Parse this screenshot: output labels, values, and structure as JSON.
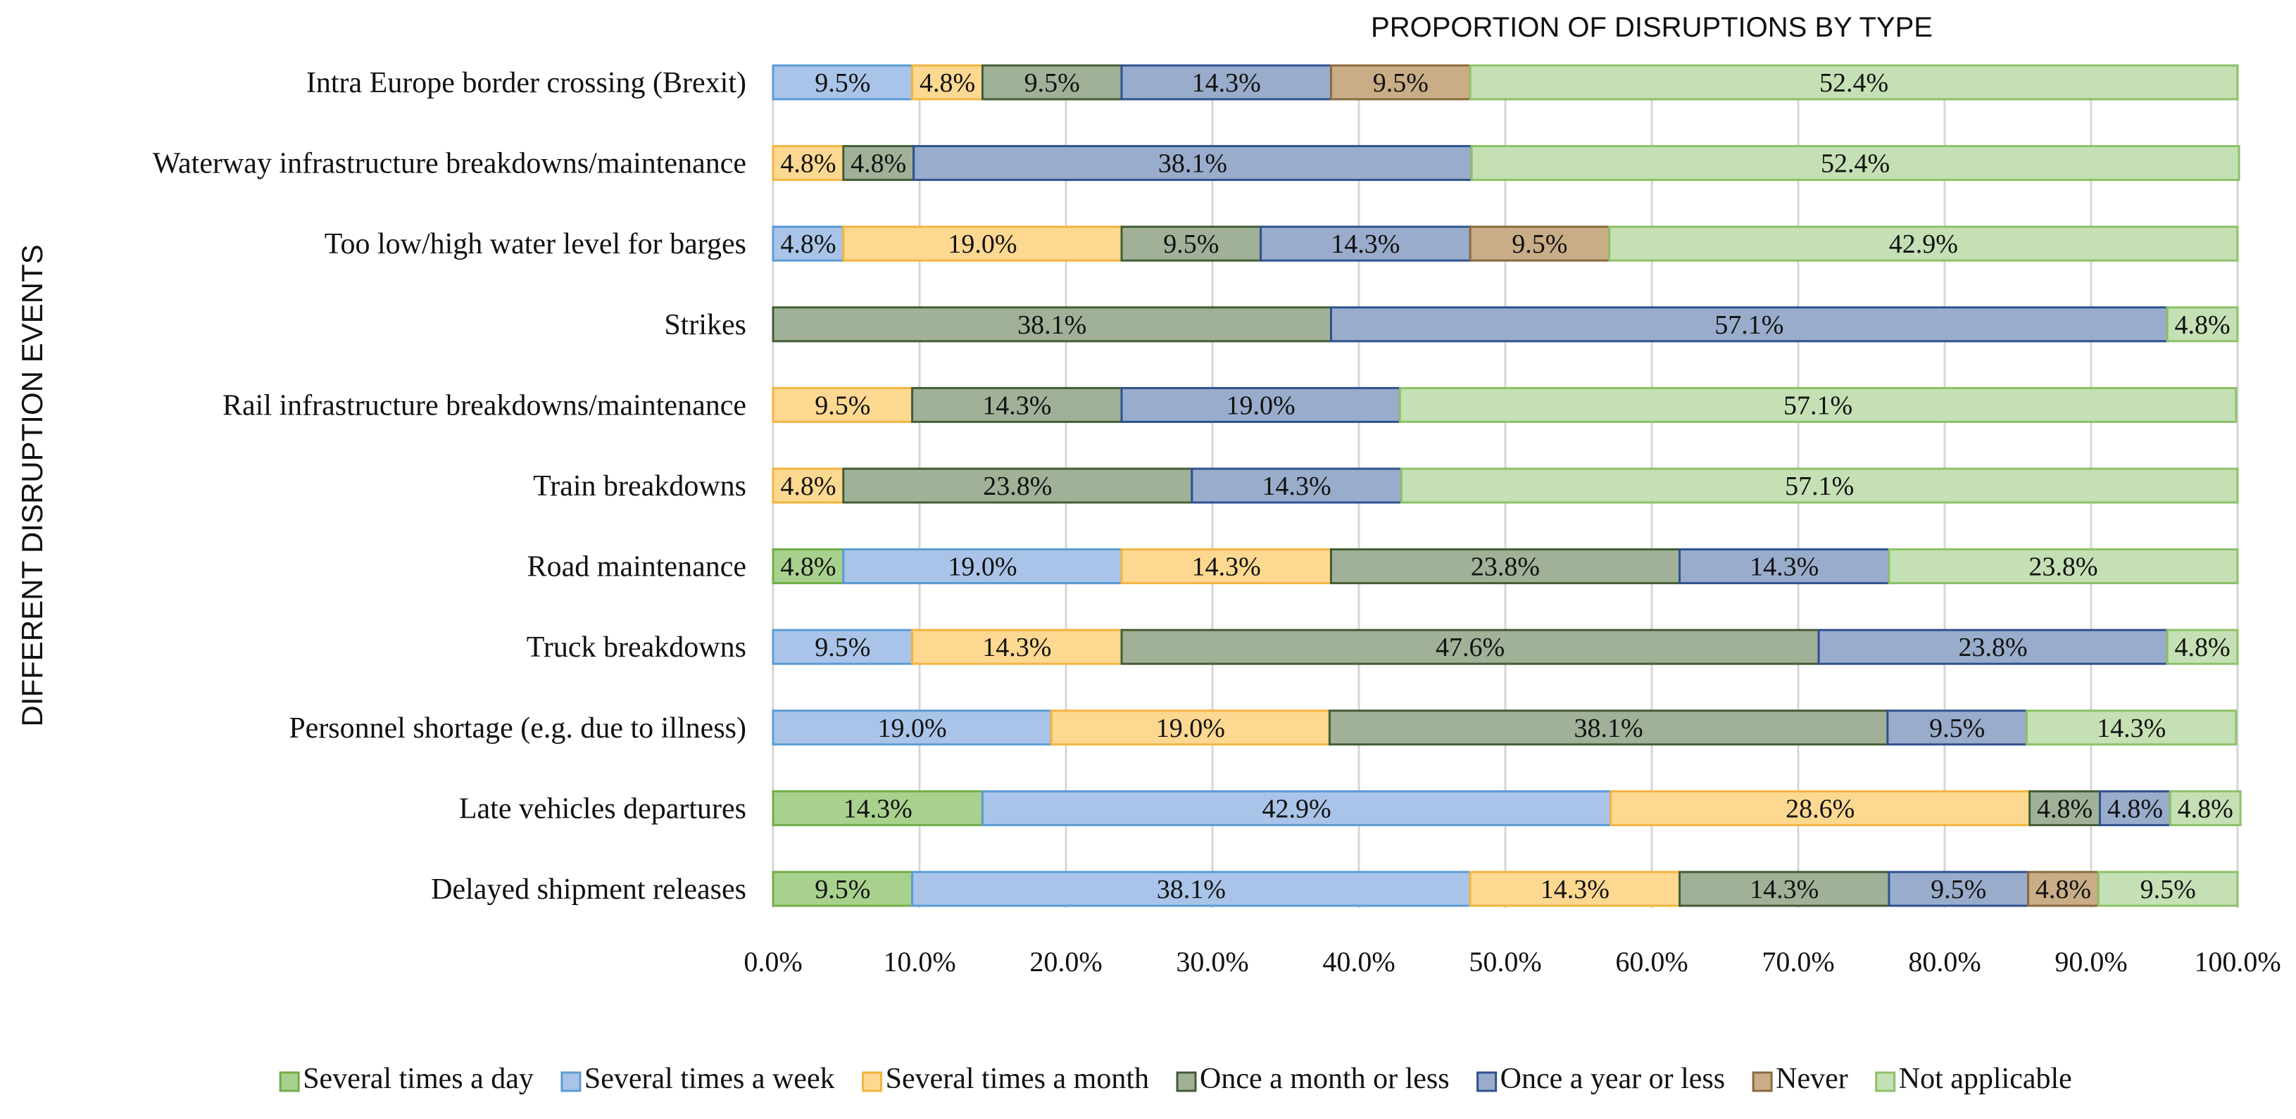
{
  "chart_data": {
    "type": "bar",
    "orientation": "horizontal",
    "stacked": true,
    "title": "PROPORTION OF DISRUPTIONS BY TYPE",
    "xlabel": "",
    "ylabel": "DIFFERENT DISRUPTION EVENTS",
    "xlim": [
      0,
      100
    ],
    "xticks": [
      "0.0%",
      "10.0%",
      "20.0%",
      "30.0%",
      "40.0%",
      "50.0%",
      "60.0%",
      "70.0%",
      "80.0%",
      "90.0%",
      "100.0%"
    ],
    "grid": true,
    "legend_position": "bottom",
    "categories": [
      "Intra Europe border crossing (Brexit)",
      "Waterway infrastructure breakdowns/maintenance",
      "Too low/high water level for barges",
      "Strikes",
      "Rail infrastructure breakdowns/maintenance",
      "Train breakdowns",
      "Road maintenance",
      "Truck breakdowns",
      "Personnel shortage (e.g. due to illness)",
      "Late vehicles departures",
      "Delayed shipment releases"
    ],
    "series": [
      {
        "name": "Several times a day",
        "fill": "#a9d18e",
        "stroke": "#70ad47",
        "values": [
          0,
          0,
          0,
          0,
          0,
          0,
          4.8,
          0,
          0,
          14.3,
          9.5
        ]
      },
      {
        "name": "Several times a week",
        "fill": "#a9c4e8",
        "stroke": "#5b9bd5",
        "values": [
          9.5,
          0,
          4.8,
          0,
          0,
          0,
          19.0,
          9.5,
          19.0,
          42.9,
          38.1
        ]
      },
      {
        "name": "Several times a month",
        "fill": "#fdd891",
        "stroke": "#f2b540",
        "values": [
          4.8,
          4.8,
          19.0,
          0,
          9.5,
          4.8,
          14.3,
          14.3,
          19.0,
          28.6,
          14.3
        ]
      },
      {
        "name": "Once a month or less",
        "fill": "#a0b198",
        "stroke": "#435c35",
        "values": [
          9.5,
          4.8,
          9.5,
          38.1,
          14.3,
          23.8,
          23.8,
          47.6,
          38.1,
          4.8,
          14.3
        ]
      },
      {
        "name": "Once a year or less",
        "fill": "#9aaccb",
        "stroke": "#2e528f",
        "values": [
          14.3,
          38.1,
          14.3,
          57.1,
          19.0,
          14.3,
          14.3,
          23.8,
          9.5,
          4.8,
          9.5
        ]
      },
      {
        "name": "Never",
        "fill": "#c8ad86",
        "stroke": "#8a6a3f",
        "values": [
          9.5,
          0,
          9.5,
          0,
          0,
          0,
          0,
          0,
          0,
          0,
          4.8
        ]
      },
      {
        "name": "Not applicable",
        "fill": "#c5e0b4",
        "stroke": "#8cc168",
        "values": [
          52.4,
          52.4,
          42.9,
          4.8,
          57.1,
          57.1,
          23.8,
          4.8,
          14.3,
          4.8,
          9.5
        ]
      }
    ]
  }
}
